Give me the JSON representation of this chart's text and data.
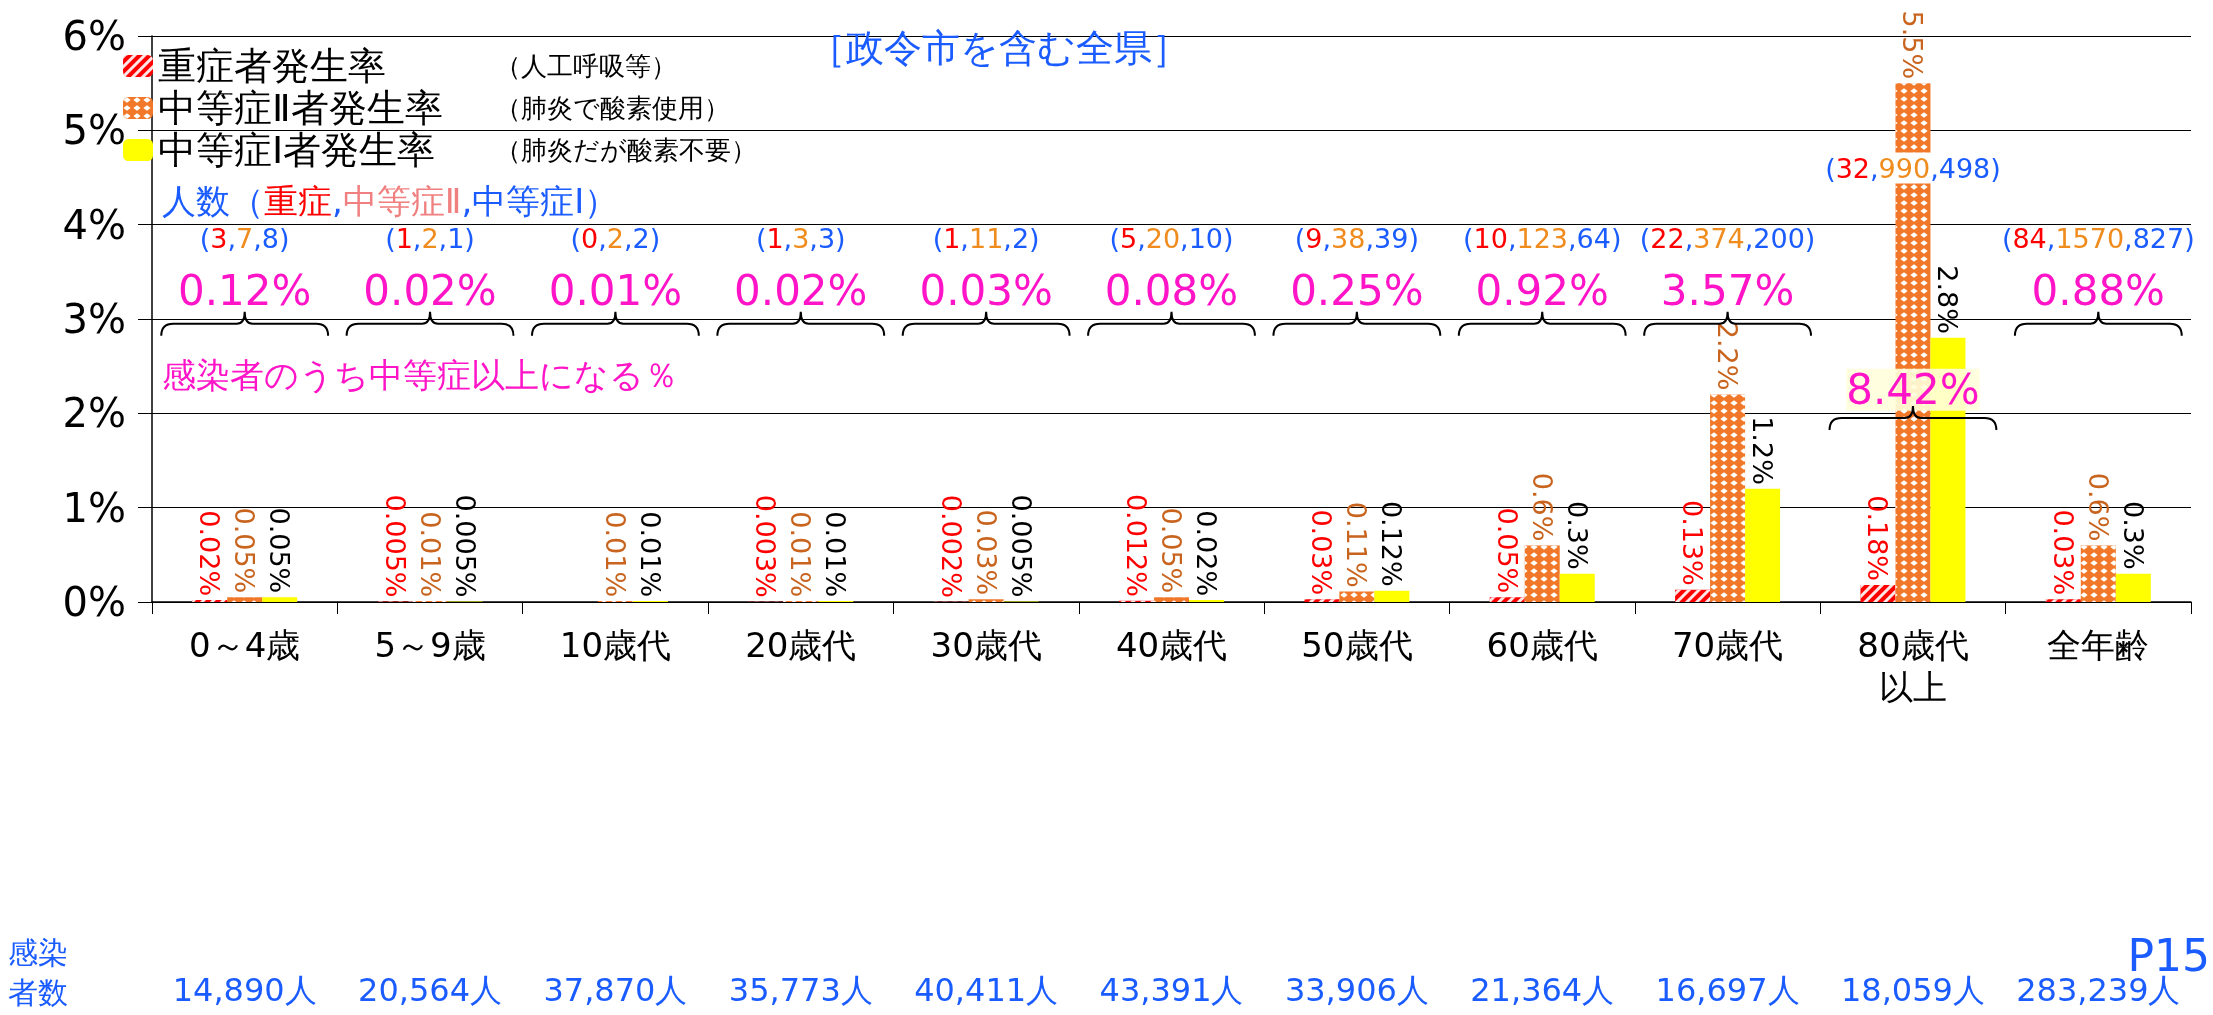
{
  "chart_data": {
    "type": "bar",
    "categories": [
      "0～4歳",
      "5～9歳",
      "10歳代",
      "20歳代",
      "30歳代",
      "40歳代",
      "50歳代",
      "60歳代",
      "70歳代",
      "80歳代以上",
      "全年齢"
    ],
    "series": [
      {
        "name": "重症者発生率",
        "color": "#ff0000",
        "values": [
          0.02,
          0.005,
          null,
          0.003,
          0.002,
          0.012,
          0.03,
          0.05,
          0.13,
          0.18,
          0.03
        ],
        "value_labels": [
          "0.02%",
          "0.005%",
          null,
          "0.003%",
          "0.002%",
          "0.012%",
          "0.03%",
          "0.05%",
          "0.13%",
          "0.18%",
          "0.03%"
        ]
      },
      {
        "name": "中等症Ⅱ者発生率",
        "color": "#f07828",
        "values": [
          0.05,
          0.01,
          0.01,
          0.01,
          0.03,
          0.05,
          0.11,
          0.6,
          2.2,
          5.5,
          0.6
        ],
        "value_labels": [
          "0.05%",
          "0.01%",
          "0.01%",
          "0.01%",
          "0.03%",
          "0.05%",
          "0.11%",
          "0.6%",
          "2.2%",
          "5.5%",
          "0.6%"
        ]
      },
      {
        "name": "中等症Ⅰ者発生率",
        "color": "#ffff00",
        "values": [
          0.05,
          0.005,
          0.01,
          0.01,
          0.005,
          0.02,
          0.12,
          0.3,
          1.2,
          2.8,
          0.3
        ],
        "value_labels": [
          "0.05%",
          "0.005%",
          "0.01%",
          "0.01%",
          "0.005%",
          "0.02%",
          "0.12%",
          "0.3%",
          "1.2%",
          "2.8%",
          "0.3%"
        ]
      }
    ],
    "ylim": [
      0,
      6
    ],
    "yticks": [
      {
        "value": 0,
        "label": "0%"
      },
      {
        "value": 1,
        "label": "1%"
      },
      {
        "value": 2,
        "label": "2%"
      },
      {
        "value": 3,
        "label": "3%"
      },
      {
        "value": 4,
        "label": "4%"
      },
      {
        "value": 5,
        "label": "5%"
      },
      {
        "value": 6,
        "label": "6%"
      }
    ],
    "grid": "y",
    "legend": "top left",
    "annotations": [
      "［政令市を含む全県］",
      "（人工呼吸等）",
      "（肺炎で酸素使用）",
      "（肺炎だが酸素不要）",
      "人数（重症,中等症Ⅱ,中等症Ⅰ）",
      "(3,7,8)",
      "(1,2,1)",
      "(0,2,2)",
      "(1,3,3)",
      "(1,11,2)",
      "(5,20,10)",
      "(9,38,39)",
      "(10,123,64)",
      "(22,374,200)",
      "(32,990,498)",
      "(84,1570,827)",
      "0.12%",
      "0.02%",
      "0.01%",
      "0.02%",
      "0.03%",
      "0.08%",
      "0.25%",
      "0.92%",
      "3.57%",
      "8.42%",
      "0.88%",
      "感染者のうち中等症以上になる％",
      "感染者数",
      "14,890人",
      "20,564人",
      "37,870人",
      "35,773人",
      "40,411人",
      "43,391人",
      "33,906人",
      "21,364人",
      "16,697人",
      "18,059人",
      "283,239人",
      "P15"
    ]
  }
}
